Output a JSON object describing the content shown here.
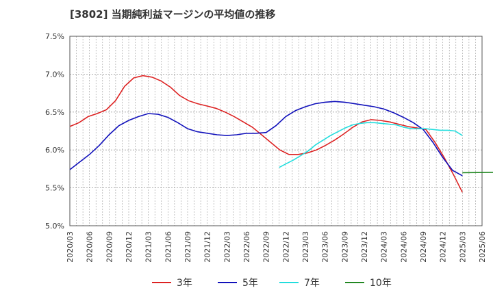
{
  "title": "[3802]  当期純利益マージンの平均値の推移",
  "chart_data": {
    "type": "line",
    "title": "[3802]  当期純利益マージンの平均値の推移",
    "xlabel": "",
    "ylabel": "",
    "ylim": [
      5.0,
      7.5
    ],
    "y_ticks": [
      "5.0%",
      "5.5%",
      "6.0%",
      "6.5%",
      "7.0%",
      "7.5%"
    ],
    "x_ticks": [
      "2020/03",
      "2020/06",
      "2020/09",
      "2020/12",
      "2021/03",
      "2021/06",
      "2021/09",
      "2021/12",
      "2022/03",
      "2022/06",
      "2022/09",
      "2022/12",
      "2023/03",
      "2023/06",
      "2023/09",
      "2023/12",
      "2024/03",
      "2024/06",
      "2024/09",
      "2024/12",
      "2025/03",
      "2025/06"
    ],
    "grid": true,
    "legend_position": "bottom",
    "series": [
      {
        "name": "3年",
        "color": "#dd2222",
        "values": [
          6.31,
          6.36,
          6.44,
          6.48,
          6.53,
          6.65,
          6.84,
          6.95,
          6.98,
          6.96,
          6.91,
          6.83,
          6.72,
          6.65,
          6.61,
          6.58,
          6.55,
          6.5,
          6.44,
          6.37,
          6.3,
          6.2,
          6.1,
          6.0,
          5.94,
          5.94,
          5.96,
          6.0,
          6.06,
          6.13,
          6.21,
          6.3,
          6.37,
          6.4,
          6.39,
          6.37,
          6.34,
          6.31,
          6.29,
          6.27,
          6.1,
          5.9,
          5.68,
          5.44
        ],
        "start_index": 0
      },
      {
        "name": "5年",
        "color": "#1111bb",
        "values": [
          5.74,
          5.84,
          5.94,
          6.06,
          6.2,
          6.32,
          6.39,
          6.44,
          6.48,
          6.47,
          6.43,
          6.36,
          6.28,
          6.24,
          6.22,
          6.2,
          6.19,
          6.2,
          6.22,
          6.22,
          6.23,
          6.32,
          6.44,
          6.52,
          6.57,
          6.61,
          6.63,
          6.64,
          6.63,
          6.61,
          6.59,
          6.57,
          6.54,
          6.49,
          6.43,
          6.36,
          6.27,
          6.1,
          5.9,
          5.73,
          5.66
        ],
        "start_index": 0
      },
      {
        "name": "7年",
        "color": "#22dddd",
        "values": [
          5.77,
          5.82,
          5.87,
          5.93,
          5.99,
          6.07,
          6.13,
          6.19,
          6.24,
          6.29,
          6.33,
          6.35,
          6.36,
          6.36,
          6.35,
          6.34,
          6.33,
          6.3,
          6.28,
          6.28,
          6.28,
          6.27,
          6.26,
          6.26,
          6.25,
          6.19
        ],
        "start_index": 32
      },
      {
        "name": "10年",
        "color": "#228822",
        "values": [
          5.71,
          5.7
        ],
        "start_index": 72
      }
    ]
  }
}
